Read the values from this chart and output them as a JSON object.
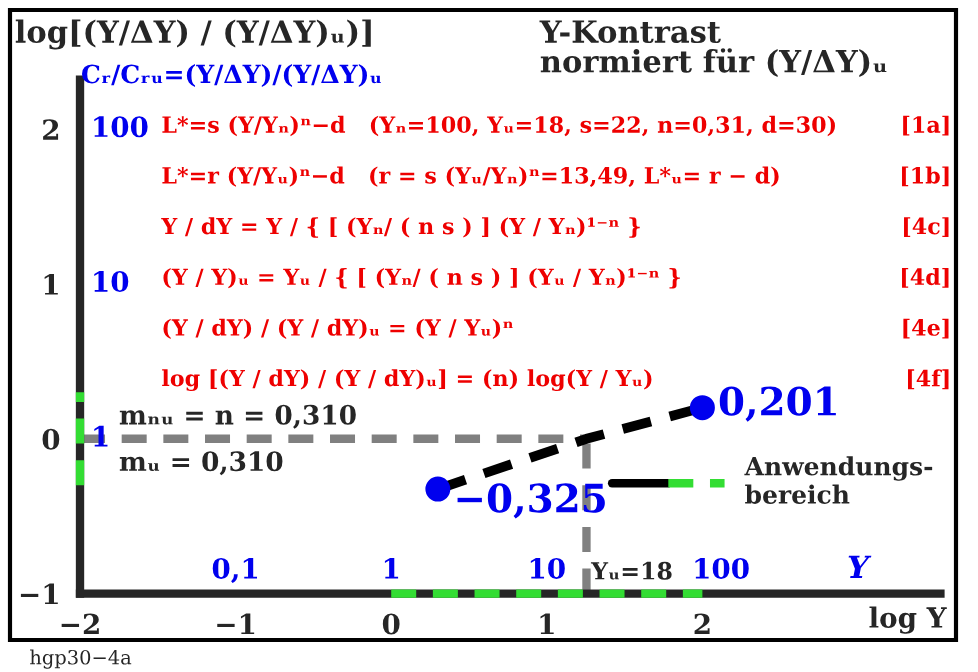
{
  "chart_data": {
    "type": "line",
    "title": "Y-Kontrast\nnormiert für (Y/ΔY)ᵤ",
    "ylabel": "log[(Y/ΔY) / (Y/ΔY)ᵤ)]",
    "subtitle": "Cᵣ/Cᵣᵤ=(Y/ΔY)/(Y/ΔY)ᵤ",
    "xlabel": "log Y",
    "x": [
      0.3,
      1.255,
      2
    ],
    "series": [
      {
        "color": "#000000",
        "values": [
          -0.325,
          0,
          0.201
        ],
        "value_labels": [
          "−0,325",
          null,
          "0,201"
        ],
        "marker": "circle",
        "line_style": "dashed"
      },
      {
        "name": "Anwendungs-\nbereich",
        "color": "#33dd33",
        "x": [
          0,
          2
        ],
        "values": [
          -1,
          -1
        ],
        "marker": "none",
        "line_style": "dashed"
      },
      {
        "color": "#33dd33",
        "x": [
          -2,
          -2
        ],
        "values": [
          -0.3,
          0.3
        ],
        "marker": "none",
        "line_style": "dashed"
      }
    ],
    "xlim": [
      -2.45,
      3.63
    ],
    "ylim": [
      -1.3,
      2.77
    ],
    "xticks": [
      {
        "value": -2,
        "label": "−2"
      },
      {
        "value": -1,
        "label": "−1"
      },
      0,
      1,
      2
    ],
    "yticks": [
      {
        "value": -1,
        "label": "−1"
      },
      0,
      1,
      2
    ],
    "ref_lines": [
      {
        "axis": "y",
        "value": 0,
        "label": null,
        "color": "#808080",
        "line_style": "dashed"
      },
      {
        "axis": "x",
        "value": 1.255,
        "label": null,
        "color": "#808080",
        "line_style": "dashed"
      }
    ],
    "grid": false,
    "legend": "right",
    "annotations": [
      "L*=s (Y/Yₙ)ⁿ−d   (Yₙ=100, Yᵤ=18, s=22, n=0,31, d=30)",
      "L*=r (Y/Yᵤ)ⁿ−d   (r = s (Yᵤ/Yₙ)ⁿ=13,49, L*ᵤ= r − d)",
      "Y / dY = Y / { [ (Yₙ/ ( n s ) ] (Y / Yₙ)¹⁻ⁿ }",
      "(Y / Y)ᵤ = Yᵤ / { [ (Yₙ/ ( n s ) ] (Yᵤ / Yₙ)¹⁻ⁿ }",
      "(Y / dY) / (Y / dY)ᵤ = (Y / Yᵤ)ⁿ",
      "log [(Y / dY) / (Y / dY)ᵤ] = (n) log(Y / Yᵤ)",
      "[1a]",
      "[1b]",
      "[4c]",
      "[4d]",
      "[4e]",
      "[4f]",
      "mₙᵤ = n = 0,310",
      "mᵤ = 0,310",
      "Yᵤ=18",
      "hgp30−4a",
      "0,1",
      "1",
      "10",
      "100",
      "Y",
      "1",
      "10",
      "100"
    ]
  }
}
